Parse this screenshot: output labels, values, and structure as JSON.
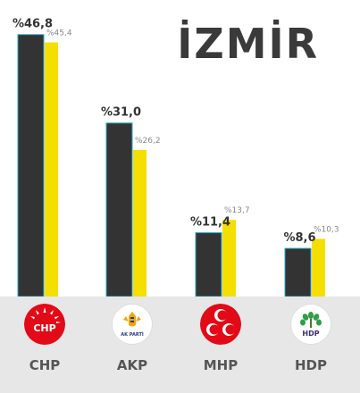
{
  "title": "İZMİR",
  "chart_data": {
    "type": "bar",
    "title": "İZMİR",
    "categories": [
      "CHP",
      "AKP",
      "MHP",
      "HDP"
    ],
    "series": [
      {
        "values": [
          46.8,
          31.0,
          11.4,
          8.6
        ]
      },
      {
        "values": [
          45.4,
          26.2,
          13.7,
          10.3
        ]
      }
    ],
    "current_labels": [
      "%46,8",
      "%31,0",
      "%11,4",
      "%8,6"
    ],
    "previous_labels": [
      "%45,4",
      "%26,2",
      "%13,7",
      "%10,3"
    ],
    "colors": {
      "current": "#333333",
      "previous": "#f5df00",
      "outline": "#27a8c8"
    },
    "ylim": [
      0,
      50
    ],
    "grid": false
  },
  "parties": [
    {
      "name": "CHP",
      "icon": "chp-logo-icon",
      "logo_text": "CHP",
      "logo_bg": "#e30a17"
    },
    {
      "name": "AKP",
      "icon": "akp-logo-icon",
      "logo_text": "AK PARTİ",
      "logo_bg": "#ffffff"
    },
    {
      "name": "MHP",
      "icon": "mhp-logo-icon",
      "logo_text": "",
      "logo_bg": "#e30a17"
    },
    {
      "name": "HDP",
      "icon": "hdp-logo-icon",
      "logo_text": "HDP",
      "logo_bg": "#ffffff"
    }
  ]
}
